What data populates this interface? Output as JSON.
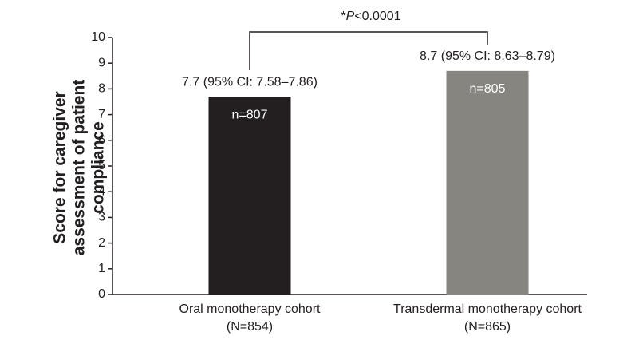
{
  "chart_data": {
    "type": "bar",
    "ylabel": [
      "Score for caregiver",
      "assessment of patient",
      "compliance"
    ],
    "categories": [
      "Oral monotherapy cohort",
      "Transdermal monotherapy cohort"
    ],
    "category_notes": [
      "(N=854)",
      "(N=865)"
    ],
    "values": [
      7.7,
      8.7
    ],
    "value_labels": [
      "7.7 (95% CI: 7.58–7.86)",
      "8.7 (95% CI: 8.63–8.79)"
    ],
    "bar_labels": [
      "n=807",
      "n=805"
    ],
    "colors": [
      "#231f20",
      "#868580"
    ],
    "annotation": [
      "*",
      "P",
      "<0.0001"
    ],
    "ylim": [
      0,
      10
    ],
    "yticks": [
      0,
      1,
      2,
      3,
      4,
      5,
      6,
      7,
      8,
      9,
      10
    ],
    "grid": false
  }
}
